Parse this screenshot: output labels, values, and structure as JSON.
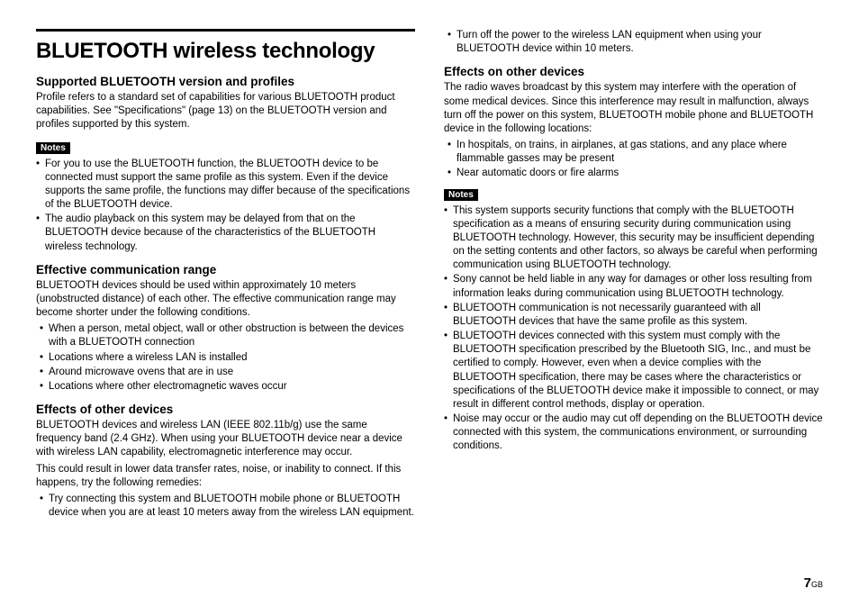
{
  "page": {
    "number": "7",
    "suffix": "GB"
  },
  "left": {
    "title": "BLUETOOTH wireless technology",
    "s1": {
      "heading": "Supported BLUETOOTH version and profiles",
      "p1": "Profile refers to a standard set of capabilities for various BLUETOOTH product capabilities. See \"Specifications\" (page 13) on the BLUETOOTH version and profiles supported by this system."
    },
    "notes1_label": "Notes",
    "notes1": {
      "b1": "For you to use the BLUETOOTH function, the BLUETOOTH device to be connected must support the same profile as this system. Even if the device supports the same profile, the functions may differ because of the specifications of the BLUETOOTH device.",
      "b2": "The audio playback on this system may be delayed from that on the BLUETOOTH device because of the characteristics of the BLUETOOTH wireless technology."
    },
    "s2": {
      "heading": "Effective communication range",
      "p1": "BLUETOOTH devices should be used within approximately 10 meters (unobstructed distance) of each other. The effective communication range may become shorter under the following conditions.",
      "b1": "When a person, metal object, wall or other obstruction is between the devices with a BLUETOOTH connection",
      "b2": "Locations where a wireless LAN is installed",
      "b3": "Around microwave ovens that are in use",
      "b4": "Locations where other electromagnetic waves occur"
    },
    "s3": {
      "heading": "Effects of other devices",
      "p1": "BLUETOOTH devices and wireless LAN (IEEE 802.11b/g) use the same frequency band (2.4 GHz). When using your BLUETOOTH device near a device with wireless LAN capability, electromagnetic interference may occur.",
      "p2": "This could result in lower data transfer rates, noise, or inability to connect. If this happens, try the following remedies:",
      "b1": "Try connecting this system and BLUETOOTH mobile phone or BLUETOOTH device when you are at least 10 meters away from the wireless LAN equipment."
    }
  },
  "right": {
    "top_b1": "Turn off the power to the wireless LAN equipment when using your BLUETOOTH device within 10 meters.",
    "s4": {
      "heading": "Effects on other devices",
      "p1": "The radio waves broadcast by this system may interfere with the operation of some medical devices. Since this interference may result in malfunction, always turn off the power on this system, BLUETOOTH mobile phone and BLUETOOTH device in the following locations:",
      "b1": "In hospitals, on trains, in airplanes, at gas stations, and any place where flammable gasses may be present",
      "b2": "Near automatic doors or fire alarms"
    },
    "notes2_label": "Notes",
    "notes2": {
      "b1": "This system supports security functions that comply with the BLUETOOTH specification as a means of ensuring security during communication using BLUETOOTH technology. However, this security may be insufficient depending on the setting contents and other factors, so always be careful when performing communication using BLUETOOTH technology.",
      "b2": "Sony cannot be held liable in any way for damages or other loss resulting from information leaks during communication using BLUETOOTH technology.",
      "b3": "BLUETOOTH communication is not necessarily guaranteed with all BLUETOOTH devices that have the same profile as this system.",
      "b4": "BLUETOOTH devices connected with this system must comply with the BLUETOOTH specification prescribed by the Bluetooth SIG, Inc., and must be certified to comply. However, even when a device complies with the BLUETOOTH specification, there may be cases where the characteristics or specifications of the BLUETOOTH device make it impossible to connect, or may result in different control methods, display or operation.",
      "b5": "Noise may occur or the audio may cut off depending on the BLUETOOTH device connected with this system, the communications environment, or surrounding conditions."
    }
  }
}
